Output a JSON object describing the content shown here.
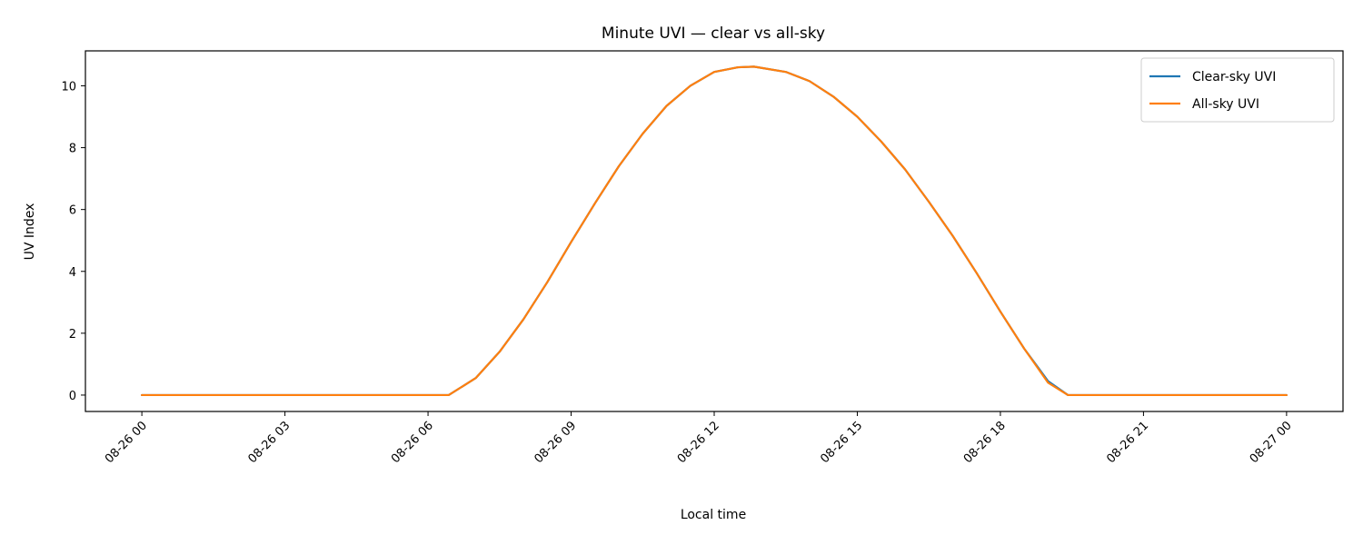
{
  "chart_data": {
    "type": "line",
    "title": "Minute UVI — clear vs all-sky",
    "xlabel": "Local time",
    "ylabel": "UV Index",
    "xlim": [
      "2024-08-25T22:49",
      "2024-08-27T01:11"
    ],
    "ylim": [
      -0.53,
      11.13
    ],
    "x_ticks": [
      "08-26 00",
      "08-26 03",
      "08-26 06",
      "08-26 09",
      "08-26 12",
      "08-26 15",
      "08-26 18",
      "08-26 21",
      "08-27 00"
    ],
    "y_ticks": [
      0,
      2,
      4,
      6,
      8,
      10
    ],
    "grid": false,
    "legend": "top-right",
    "x": [
      "2024-08-26T00:00",
      "2024-08-26T03:00",
      "2024-08-26T06:00",
      "2024-08-26T06:26",
      "2024-08-26T07:00",
      "2024-08-26T07:30",
      "2024-08-26T08:00",
      "2024-08-26T08:30",
      "2024-08-26T09:00",
      "2024-08-26T09:30",
      "2024-08-26T10:00",
      "2024-08-26T10:30",
      "2024-08-26T11:00",
      "2024-08-26T11:30",
      "2024-08-26T12:00",
      "2024-08-26T12:30",
      "2024-08-26T12:50",
      "2024-08-26T13:30",
      "2024-08-26T14:00",
      "2024-08-26T14:30",
      "2024-08-26T15:00",
      "2024-08-26T15:30",
      "2024-08-26T16:00",
      "2024-08-26T16:30",
      "2024-08-26T17:00",
      "2024-08-26T17:30",
      "2024-08-26T18:00",
      "2024-08-26T18:30",
      "2024-08-26T19:00",
      "2024-08-26T19:25",
      "2024-08-26T21:00",
      "2024-08-27T00:00"
    ],
    "series": [
      {
        "name": "Clear-sky UVI",
        "color": "#1f77b4",
        "values": [
          0,
          0,
          0,
          0,
          0.55,
          1.4,
          2.45,
          3.65,
          4.95,
          6.2,
          7.4,
          8.45,
          9.35,
          10.0,
          10.45,
          10.6,
          10.62,
          10.45,
          10.15,
          9.65,
          9.0,
          8.2,
          7.3,
          6.25,
          5.15,
          3.95,
          2.7,
          1.5,
          0.45,
          0.0,
          0,
          0
        ]
      },
      {
        "name": "All-sky UVI",
        "color": "#ff7f0e",
        "values": [
          0,
          0,
          0,
          0,
          0.55,
          1.4,
          2.45,
          3.65,
          4.95,
          6.2,
          7.4,
          8.45,
          9.35,
          10.0,
          10.45,
          10.6,
          10.62,
          10.45,
          10.15,
          9.65,
          9.0,
          8.2,
          7.3,
          6.25,
          5.15,
          3.95,
          2.7,
          1.5,
          0.4,
          0.0,
          0,
          0
        ]
      }
    ]
  }
}
